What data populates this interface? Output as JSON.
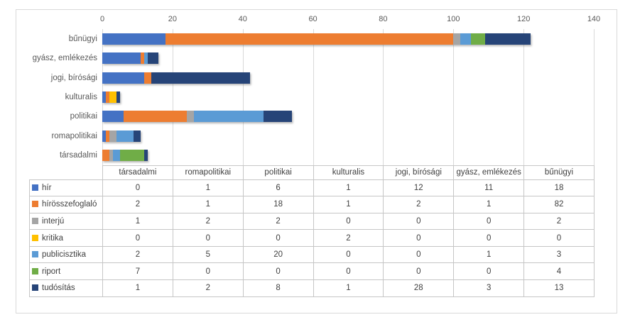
{
  "chart_data": {
    "type": "bar",
    "orientation": "horizontal",
    "stacked": true,
    "title": "",
    "categories": [
      "bűnügyi",
      "gyász, emlékezés",
      "jogi, bírósági",
      "kulturalis",
      "politikai",
      "romapolitikai",
      "társadalmi"
    ],
    "series": [
      {
        "name": "hír",
        "color": "#4472C4",
        "values": [
          18,
          11,
          12,
          1,
          6,
          1,
          0
        ]
      },
      {
        "name": "hírösszefoglaló",
        "color": "#ED7D31",
        "values": [
          82,
          1,
          2,
          1,
          18,
          1,
          2
        ]
      },
      {
        "name": "interjú",
        "color": "#A5A5A5",
        "values": [
          2,
          0,
          0,
          0,
          2,
          2,
          1
        ]
      },
      {
        "name": "kritika",
        "color": "#FFC000",
        "values": [
          0,
          0,
          0,
          2,
          0,
          0,
          0
        ]
      },
      {
        "name": "publicisztika",
        "color": "#5B9BD5",
        "values": [
          3,
          1,
          0,
          0,
          20,
          5,
          2
        ]
      },
      {
        "name": "riport",
        "color": "#70AD47",
        "values": [
          4,
          0,
          0,
          0,
          0,
          0,
          7
        ]
      },
      {
        "name": "tudósítás",
        "color": "#264478",
        "values": [
          13,
          3,
          28,
          1,
          8,
          2,
          1
        ]
      }
    ],
    "x_axis": {
      "min": 0,
      "max": 140,
      "tick_step": 20,
      "ticks": [
        0,
        20,
        40,
        60,
        80,
        100,
        120,
        140
      ]
    },
    "grid": true,
    "legend_position": "data-table-left",
    "data_table": {
      "columns": [
        "társadalmi",
        "romapolitikai",
        "politikai",
        "kulturalis",
        "jogi, bírósági",
        "gyász, emlékezés",
        "bűnügyi"
      ],
      "rows": [
        {
          "label": "hír",
          "color": "#4472C4",
          "values": [
            0,
            1,
            6,
            1,
            12,
            11,
            18
          ]
        },
        {
          "label": "hírösszefoglaló",
          "color": "#ED7D31",
          "values": [
            2,
            1,
            18,
            1,
            2,
            1,
            82
          ]
        },
        {
          "label": "interjú",
          "color": "#A5A5A5",
          "values": [
            1,
            2,
            2,
            0,
            0,
            0,
            2
          ]
        },
        {
          "label": "kritika",
          "color": "#FFC000",
          "values": [
            0,
            0,
            0,
            2,
            0,
            0,
            0
          ]
        },
        {
          "label": "publicisztika",
          "color": "#5B9BD5",
          "values": [
            2,
            5,
            20,
            0,
            0,
            1,
            3
          ]
        },
        {
          "label": "riport",
          "color": "#70AD47",
          "values": [
            7,
            0,
            0,
            0,
            0,
            0,
            4
          ]
        },
        {
          "label": "tudósítás",
          "color": "#264478",
          "values": [
            1,
            2,
            8,
            1,
            28,
            3,
            13
          ]
        }
      ]
    },
    "style": {
      "grid_color": "#D9D9D9",
      "frame_border_color": "#D9D9D9",
      "axis_text_color": "#595959",
      "table_text_color": "#404040",
      "table_border_color": "#C6C6C6",
      "background": "#FFFFFF"
    }
  }
}
